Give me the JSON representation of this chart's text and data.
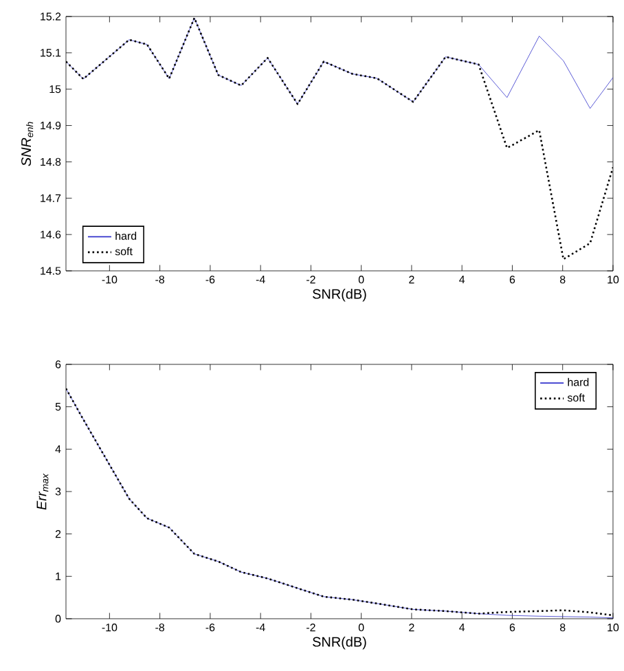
{
  "chart_data": [
    {
      "type": "line",
      "xlabel": "SNR(dB)",
      "ylabel": "SNR$_{enh}$",
      "x": [
        -11.73,
        -11.04,
        -9.22,
        -8.51,
        -7.63,
        -6.63,
        -5.68,
        -4.77,
        -3.72,
        -2.53,
        -1.49,
        -0.35,
        0.62,
        2.06,
        3.35,
        4.66,
        5.79,
        7.07,
        8.03,
        9.09,
        10
      ],
      "series": [
        {
          "name": "hard",
          "color": "#3333cc",
          "line_style": "solid",
          "values": [
            15.076,
            15.028,
            15.136,
            15.123,
            15.029,
            15.196,
            15.039,
            15.01,
            15.086,
            14.959,
            15.076,
            15.042,
            15.03,
            14.965,
            15.089,
            15.068,
            14.977,
            15.146,
            15.078,
            14.947,
            15.032
          ]
        },
        {
          "name": "soft",
          "color": "#000000",
          "line_style": "dotted",
          "values": [
            15.076,
            15.028,
            15.136,
            15.123,
            15.029,
            15.196,
            15.039,
            15.01,
            15.086,
            14.959,
            15.076,
            15.042,
            15.03,
            14.965,
            15.089,
            15.068,
            14.838,
            14.887,
            14.532,
            14.576,
            14.785
          ]
        }
      ],
      "xlim": [
        -11.73,
        10
      ],
      "xticks": [
        -10,
        -8,
        -6,
        -4,
        -2,
        0,
        2,
        4,
        6,
        8,
        10
      ],
      "ylim": [
        14.5,
        15.2
      ],
      "yticks": [
        14.5,
        14.6,
        14.7,
        14.8,
        14.9,
        15,
        15.1,
        15.2
      ],
      "grid": false,
      "legend": "bottom left",
      "marker": "none"
    },
    {
      "type": "line",
      "xlabel": "SNR(dB)",
      "ylabel": "Err$_{max}$",
      "x": [
        -11.73,
        -11.04,
        -9.22,
        -8.51,
        -7.63,
        -6.63,
        -5.68,
        -4.77,
        -3.72,
        -2.53,
        -1.49,
        -0.35,
        0.62,
        2.06,
        3.35,
        4.66,
        5.79,
        7.07,
        8.03,
        9.09,
        10
      ],
      "series": [
        {
          "name": "hard",
          "color": "#3333cc",
          "line_style": "solid",
          "values": [
            5.43,
            4.7,
            2.83,
            2.37,
            2.15,
            1.53,
            1.35,
            1.1,
            0.95,
            0.72,
            0.52,
            0.45,
            0.36,
            0.22,
            0.18,
            0.12,
            0.08,
            0.06,
            0.05,
            0.04,
            0.02
          ]
        },
        {
          "name": "soft",
          "color": "#000000",
          "line_style": "dotted",
          "values": [
            5.43,
            4.7,
            2.83,
            2.37,
            2.15,
            1.53,
            1.35,
            1.1,
            0.95,
            0.72,
            0.52,
            0.45,
            0.36,
            0.22,
            0.18,
            0.12,
            0.16,
            0.18,
            0.2,
            0.15,
            0.08
          ]
        }
      ],
      "xlim": [
        -11.73,
        10
      ],
      "xticks": [
        -10,
        -8,
        -6,
        -4,
        -2,
        0,
        2,
        4,
        6,
        8,
        10
      ],
      "ylim": [
        0,
        6
      ],
      "yticks": [
        0,
        1,
        2,
        3,
        4,
        5,
        6
      ],
      "grid": false,
      "legend": "top right",
      "marker": "none"
    }
  ]
}
